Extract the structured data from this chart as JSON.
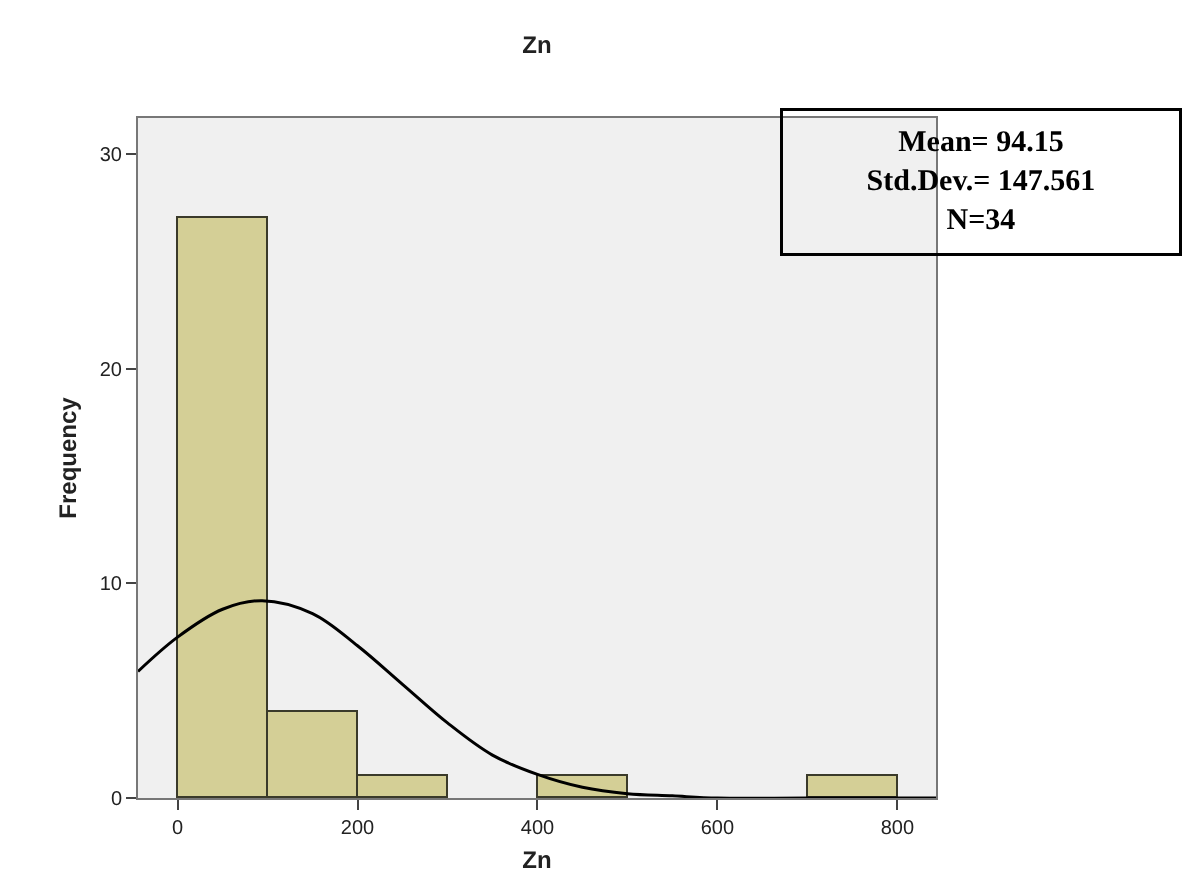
{
  "chart_data": {
    "type": "histogram",
    "title": "Zn",
    "xlabel": "Zn",
    "ylabel": "Frequency",
    "bins": [
      0,
      100,
      200,
      300,
      400,
      500,
      600,
      700,
      800
    ],
    "series": [
      {
        "color": "#d4cf96",
        "values": [
          27,
          4,
          1,
          0,
          1,
          0,
          0,
          1
        ]
      },
      {
        "type": "line",
        "color": "#000000",
        "x": [
          -44,
          0,
          50,
          94,
          150,
          200,
          250,
          300,
          350,
          400,
          450,
          500,
          550,
          600,
          700,
          843
        ],
        "values": [
          5.9,
          7.5,
          8.8,
          9.2,
          8.6,
          7.1,
          5.3,
          3.5,
          2.0,
          1.1,
          0.5,
          0.2,
          0.1,
          0,
          0,
          0
        ]
      }
    ],
    "xlim": [
      -44,
      843
    ],
    "xticks": [
      0,
      200,
      400,
      600,
      800
    ],
    "ylim": [
      0,
      31.7
    ],
    "yticks": [
      0,
      10,
      20,
      30
    ],
    "grid": false,
    "marker": "none",
    "line_style": "solid",
    "annotations": [
      "Mean= 94.15\nStd.Dev.= 147.561\nN=34"
    ]
  }
}
